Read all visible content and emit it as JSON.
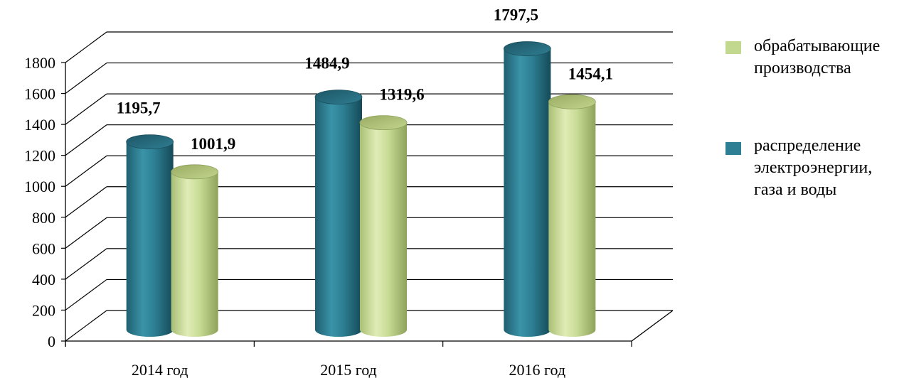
{
  "chart_data": {
    "type": "bar",
    "title": "",
    "xlabel": "",
    "ylabel": "",
    "categories": [
      "2014 год",
      "2015 год",
      "2016 год"
    ],
    "ylim": [
      0,
      1800
    ],
    "yticks": [
      "0",
      "200",
      "400",
      "600",
      "800",
      "1000",
      "1200",
      "1400",
      "1600",
      "1800"
    ],
    "grid": true,
    "legend_position": "right",
    "series": [
      {
        "name": "распределение электроэнергии, газа и воды",
        "legend_lines": [
          "распределение",
          "электроэнергии,",
          "газа и воды"
        ],
        "color": "#2e7f93",
        "values": [
          1195.7,
          1484.9,
          1797.5
        ],
        "labels": [
          "1195,7",
          "1484,9",
          "1797,5"
        ]
      },
      {
        "name": "обрабатывающие производства",
        "legend_lines": [
          "обрабатывающие",
          "производства"
        ],
        "color": "#c3d88f",
        "values": [
          1001.9,
          1319.6,
          1454.1
        ],
        "labels": [
          "1001,9",
          "1319,6",
          "1454,1"
        ]
      }
    ]
  }
}
